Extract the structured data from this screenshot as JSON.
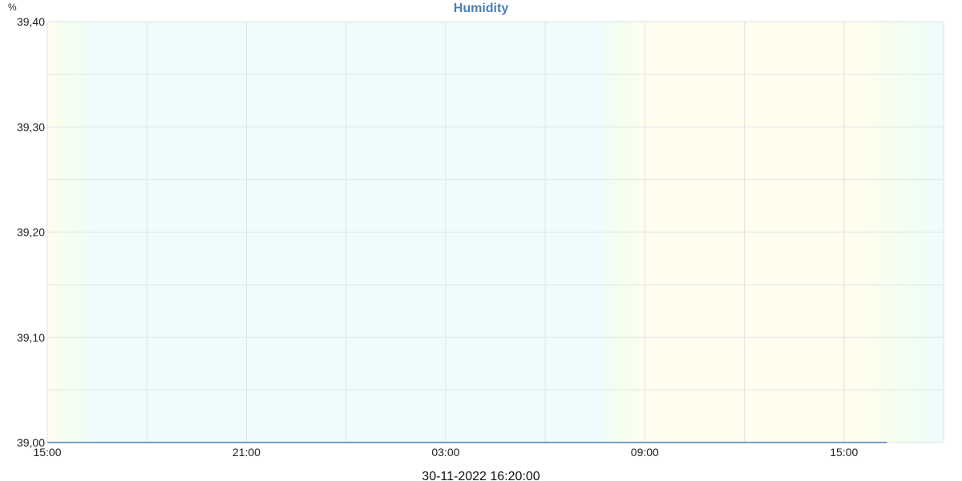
{
  "chart_data": {
    "type": "line",
    "title": "Humidity",
    "ylabel": "%",
    "xlabel": "",
    "timestamp": "30-11-2022 16:20:00",
    "x_domain_hours": [
      15,
      42
    ],
    "x_tick_labels": [
      "15:00",
      "21:00",
      "03:00",
      "09:00",
      "15:00"
    ],
    "x_tick_hours": [
      15,
      21,
      27,
      33,
      39
    ],
    "x_grid_hours": [
      15,
      18,
      21,
      24,
      27,
      30,
      33,
      36,
      39,
      42
    ],
    "ylim": [
      39.0,
      39.4
    ],
    "y_ticks": [
      39.0,
      39.1,
      39.2,
      39.3,
      39.4
    ],
    "y_tick_labels": [
      "39,00",
      "39,10",
      "39,20",
      "39,30",
      "39,40"
    ],
    "y_minor_ticks": [
      39.05,
      39.15,
      39.25,
      39.35
    ],
    "grid": true,
    "series": [
      {
        "x_hours": [
          15,
          40.3
        ],
        "values": [
          39.0,
          39.0
        ]
      }
    ],
    "colors": {
      "title": "#4a7fb2",
      "line": "#4a7fb2",
      "grid": "#dfe3e6",
      "day": "#fffdee",
      "night": "#eefcfd",
      "twilight": "#f3fff0"
    },
    "background_bands": [
      {
        "from": 15,
        "to": 16.5,
        "kind": "day-to-night"
      },
      {
        "from": 16.5,
        "to": 31.5,
        "kind": "night"
      },
      {
        "from": 31.5,
        "to": 33,
        "kind": "night-to-day"
      },
      {
        "from": 33,
        "to": 39.5,
        "kind": "day"
      },
      {
        "from": 39.5,
        "to": 42,
        "kind": "day-to-night"
      }
    ]
  }
}
